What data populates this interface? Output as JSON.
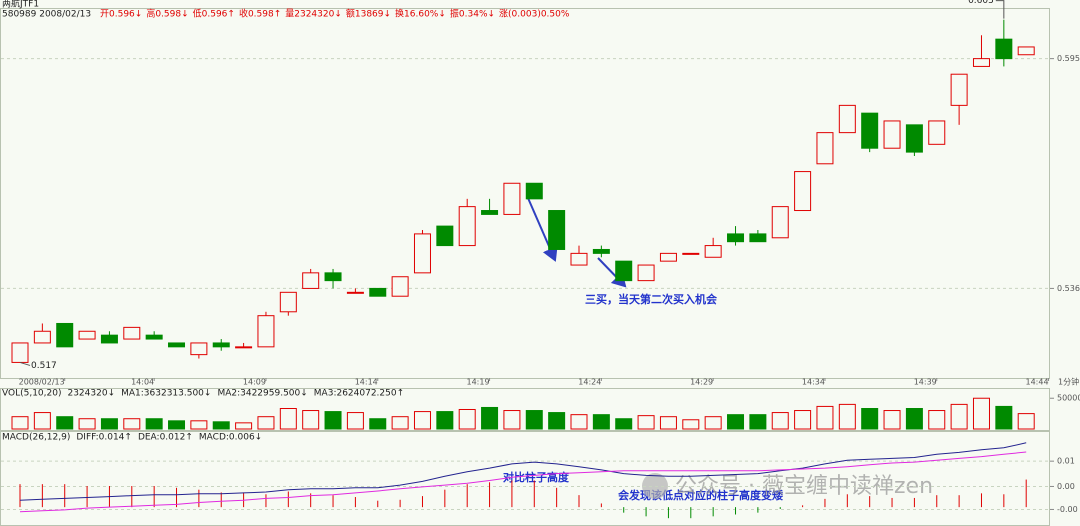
{
  "header": {
    "title": "两航JTF1",
    "code_date": "580989 2008/02/13",
    "fields": [
      "开0.596↓",
      "高0.598↓",
      "低0.596↑",
      "收0.598↑",
      "量2324320↓",
      "额13869↓",
      "换16.60%↓",
      "振0.34%↓",
      "涨(0.003)0.50%"
    ]
  },
  "watermark": "公众号 · 薇宝缠中读禅zen",
  "chart_data": [
    {
      "type": "candlestick",
      "open": [
        0.517,
        0.522,
        0.527,
        0.523,
        0.524,
        0.523,
        0.524,
        0.522,
        0.519,
        0.522,
        0.521,
        0.521,
        0.53,
        0.536,
        0.54,
        0.535,
        0.536,
        0.534,
        0.54,
        0.552,
        0.547,
        0.556,
        0.555,
        0.563,
        0.556,
        0.542,
        0.546,
        0.543,
        0.538,
        0.543,
        0.545,
        0.544,
        0.55,
        0.55,
        0.549,
        0.556,
        0.568,
        0.576,
        0.581,
        0.572,
        0.578,
        0.573,
        0.583,
        0.593,
        0.6,
        0.596
      ],
      "high": [
        0.522,
        0.527,
        0.527,
        0.525,
        0.525,
        0.526,
        0.525,
        0.522,
        0.522,
        0.523,
        0.522,
        0.53,
        0.535,
        0.541,
        0.541,
        0.536,
        0.536,
        0.539,
        0.551,
        0.552,
        0.559,
        0.559,
        0.563,
        0.563,
        0.556,
        0.547,
        0.547,
        0.543,
        0.542,
        0.545,
        0.545,
        0.549,
        0.552,
        0.551,
        0.557,
        0.566,
        0.576,
        0.583,
        0.581,
        0.579,
        0.578,
        0.579,
        0.591,
        0.601,
        0.605,
        0.598
      ],
      "low": [
        0.517,
        0.522,
        0.521,
        0.523,
        0.522,
        0.523,
        0.523,
        0.521,
        0.518,
        0.52,
        0.521,
        0.521,
        0.529,
        0.536,
        0.536,
        0.535,
        0.534,
        0.534,
        0.54,
        0.547,
        0.547,
        0.555,
        0.555,
        0.559,
        0.546,
        0.542,
        0.544,
        0.538,
        0.538,
        0.543,
        0.545,
        0.544,
        0.547,
        0.548,
        0.549,
        0.556,
        0.568,
        0.576,
        0.571,
        0.572,
        0.57,
        0.573,
        0.578,
        0.593,
        0.593,
        0.596
      ],
      "close": [
        0.522,
        0.525,
        0.521,
        0.525,
        0.522,
        0.526,
        0.523,
        0.521,
        0.522,
        0.521,
        0.521,
        0.529,
        0.535,
        0.54,
        0.538,
        0.535,
        0.534,
        0.539,
        0.55,
        0.547,
        0.557,
        0.555,
        0.563,
        0.559,
        0.546,
        0.545,
        0.545,
        0.538,
        0.542,
        0.545,
        0.545,
        0.547,
        0.548,
        0.548,
        0.557,
        0.566,
        0.576,
        0.583,
        0.572,
        0.579,
        0.571,
        0.579,
        0.591,
        0.595,
        0.595,
        0.598
      ],
      "up_color": "#e00000",
      "down_color": "#008a00",
      "ylim": [
        0.513,
        0.608
      ],
      "yticks": [
        0.595,
        0.536
      ],
      "grid": true,
      "xticks": [
        {
          "value": 2,
          "label": "2008/02/13"
        },
        {
          "value": 6,
          "label": "14:04"
        },
        {
          "value": 11,
          "label": "14:09"
        },
        {
          "value": 16,
          "label": "14:14"
        },
        {
          "value": 21,
          "label": "14:19"
        },
        {
          "value": 26,
          "label": "14:24"
        },
        {
          "value": 31,
          "label": "14:29"
        },
        {
          "value": 36,
          "label": "14:34"
        },
        {
          "value": 41,
          "label": "14:39"
        },
        {
          "value": 46,
          "label": "14:44"
        }
      ],
      "x_unit": "1分钟",
      "high_label": "0.605",
      "low_label": "0.517",
      "annotation": "三买，当天第二次买入机会"
    },
    {
      "type": "bar",
      "legend": [
        "VOL(5,10,20)",
        "2324320↓",
        "MA1:3632313.500↓",
        "MA2:3422959.500↓",
        "MA3:2624072.250↑"
      ],
      "values": [
        200000,
        267000,
        200000,
        167000,
        167000,
        167000,
        167000,
        133000,
        133000,
        117000,
        100000,
        200000,
        333000,
        300000,
        283000,
        267000,
        167000,
        200000,
        283000,
        283000,
        317000,
        350000,
        300000,
        300000,
        267000,
        233000,
        233000,
        167000,
        217000,
        200000,
        150000,
        200000,
        233000,
        233000,
        267000,
        300000,
        367000,
        400000,
        333000,
        300000,
        333000,
        300000,
        400000,
        500000,
        367000,
        250000
      ],
      "ylim": [
        0,
        520000
      ],
      "yticks": [
        500000
      ]
    },
    {
      "type": "macd",
      "legend": [
        "MACD(26,12,9)",
        "DIFF:0.014↑",
        "DEA:0.012↑",
        "MACD:0.006↓"
      ],
      "diff": [
        0.0015,
        0.0017,
        0.0019,
        0.0021,
        0.0023,
        0.0025,
        0.0027,
        0.0027,
        0.0029,
        0.0029,
        0.0031,
        0.0033,
        0.0038,
        0.004,
        0.004,
        0.0042,
        0.0042,
        0.0048,
        0.0056,
        0.0067,
        0.0077,
        0.0085,
        0.0094,
        0.0098,
        0.0094,
        0.0088,
        0.0081,
        0.0073,
        0.0069,
        0.0067,
        0.0067,
        0.0069,
        0.0071,
        0.0073,
        0.0079,
        0.0085,
        0.0094,
        0.0102,
        0.0104,
        0.0106,
        0.0108,
        0.0115,
        0.0119,
        0.0125,
        0.0129,
        0.014
      ],
      "dea": [
        -0.001,
        -0.0008,
        -0.0006,
        -0.0002,
        0,
        0.0002,
        0.0004,
        0.0006,
        0.001,
        0.0013,
        0.0015,
        0.0019,
        0.0021,
        0.0025,
        0.0027,
        0.0031,
        0.0035,
        0.004,
        0.0044,
        0.0048,
        0.0052,
        0.0058,
        0.0065,
        0.0069,
        0.0073,
        0.0075,
        0.0077,
        0.0079,
        0.0079,
        0.0079,
        0.0079,
        0.0079,
        0.0079,
        0.0079,
        0.0081,
        0.0083,
        0.0085,
        0.0088,
        0.0092,
        0.0096,
        0.0098,
        0.0102,
        0.0106,
        0.011,
        0.0115,
        0.012
      ],
      "macd": [
        0.005,
        0.005,
        0.005,
        0.0046,
        0.0046,
        0.0046,
        0.0046,
        0.0042,
        0.0038,
        0.0032,
        0.0032,
        0.0028,
        0.0034,
        0.003,
        0.0026,
        0.0022,
        0.0014,
        0.0016,
        0.0024,
        0.0038,
        0.005,
        0.0054,
        0.0058,
        0.0058,
        0.0042,
        0.0026,
        0.0008,
        -0.0012,
        -0.002,
        -0.0024,
        -0.0024,
        -0.002,
        -0.0016,
        -0.0012,
        -0.0004,
        0.0004,
        0.0018,
        0.0028,
        0.0024,
        0.002,
        0.002,
        0.0026,
        0.0026,
        0.003,
        0.0028,
        0.006
      ],
      "diff_color": "#23238f",
      "dea_color": "#e02ae0",
      "up_color": "#e00000",
      "down_color": "#008a00",
      "ylim": [
        -0.0041,
        0.0146
      ],
      "yticks": [
        0.01,
        {
          "value": 0.0045,
          "label": "0.00"
        },
        {
          "value": -0.0005,
          "label": "-0.00"
        }
      ],
      "annotations": [
        "对比柱子高度",
        "会发现该低点对应的柱子高度变矮"
      ]
    }
  ]
}
